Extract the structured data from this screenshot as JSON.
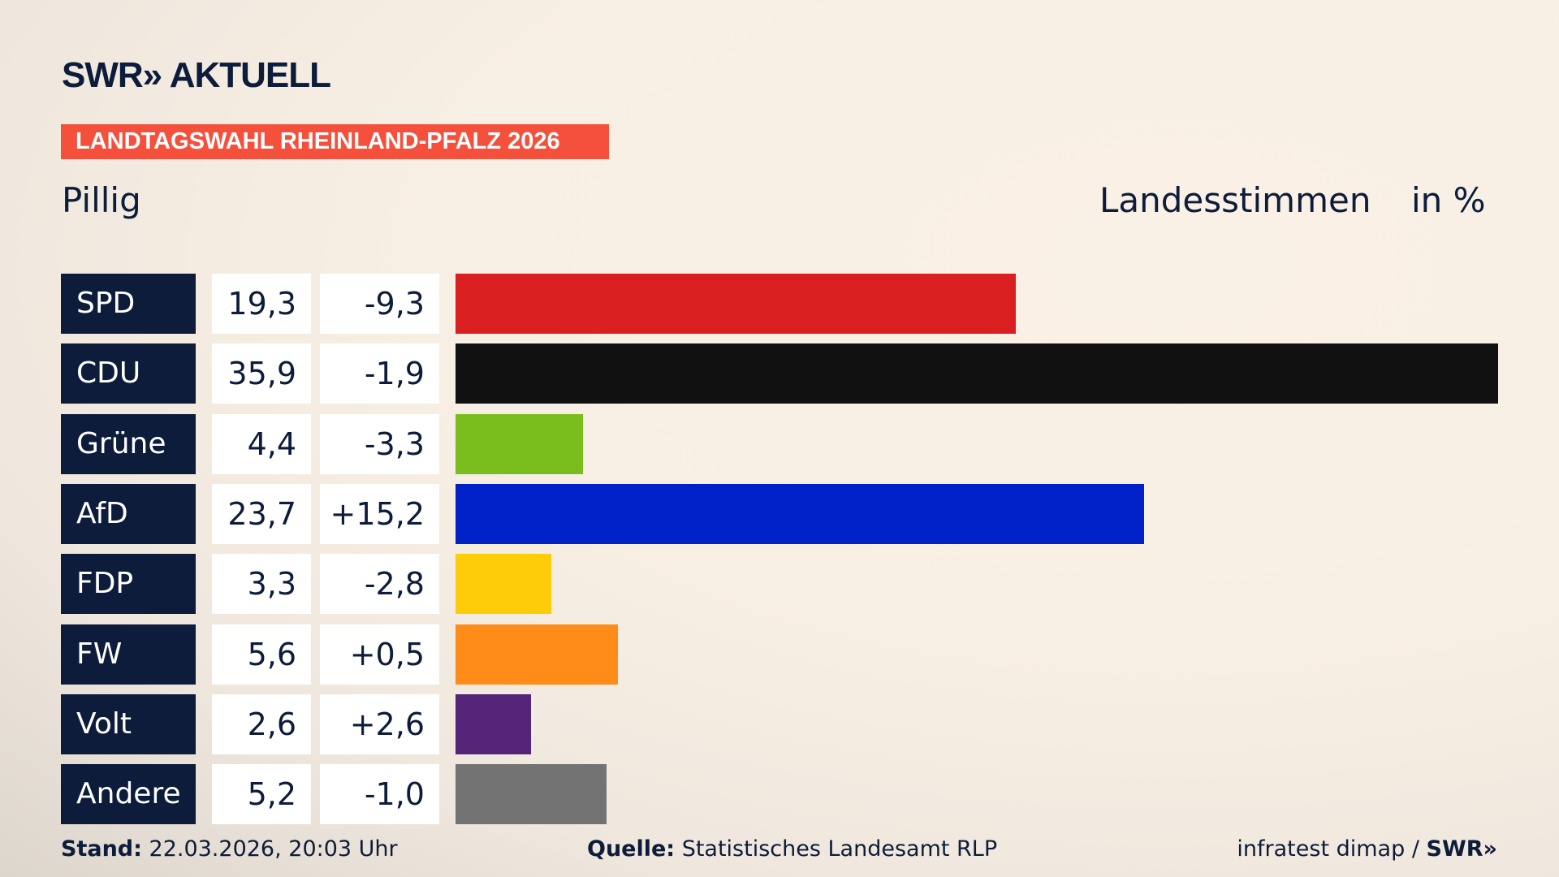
{
  "header": {
    "logo": "SWR» AKTUELL",
    "banner": "LANDTAGSWAHL RHEINLAND-PFALZ 2026",
    "location": "Pillig",
    "measure": "Landesstimmen",
    "unit": "in %"
  },
  "chart_data": {
    "type": "bar",
    "orientation": "horizontal",
    "categories": [
      "SPD",
      "CDU",
      "Grüne",
      "AfD",
      "FDP",
      "FW",
      "Volt",
      "Andere"
    ],
    "values": [
      19.3,
      35.9,
      4.4,
      23.7,
      3.3,
      5.6,
      2.6,
      5.2
    ],
    "value_labels": [
      "19,3",
      "35,9",
      "4,4",
      "23,7",
      "3,3",
      "5,6",
      "2,6",
      "5,2"
    ],
    "diff_labels": [
      "-9,3",
      "-1,9",
      "-3,3",
      "+15,2",
      "-2,8",
      "+0,5",
      "+2,6",
      "-1,0"
    ],
    "colors": [
      "#d91f1f",
      "#111111",
      "#79be1c",
      "#0021c8",
      "#ffcc0a",
      "#ff8c18",
      "#532478",
      "#737373"
    ],
    "xlim": [
      0,
      35.9
    ]
  },
  "footer": {
    "stand_label": "Stand:",
    "stand_value": "22.03.2026, 20:03 Uhr",
    "source_label": "Quelle:",
    "source_value": "Statistisches Landesamt RLP",
    "credit": "infratest dimap /",
    "credit_logo": "SWR»"
  }
}
